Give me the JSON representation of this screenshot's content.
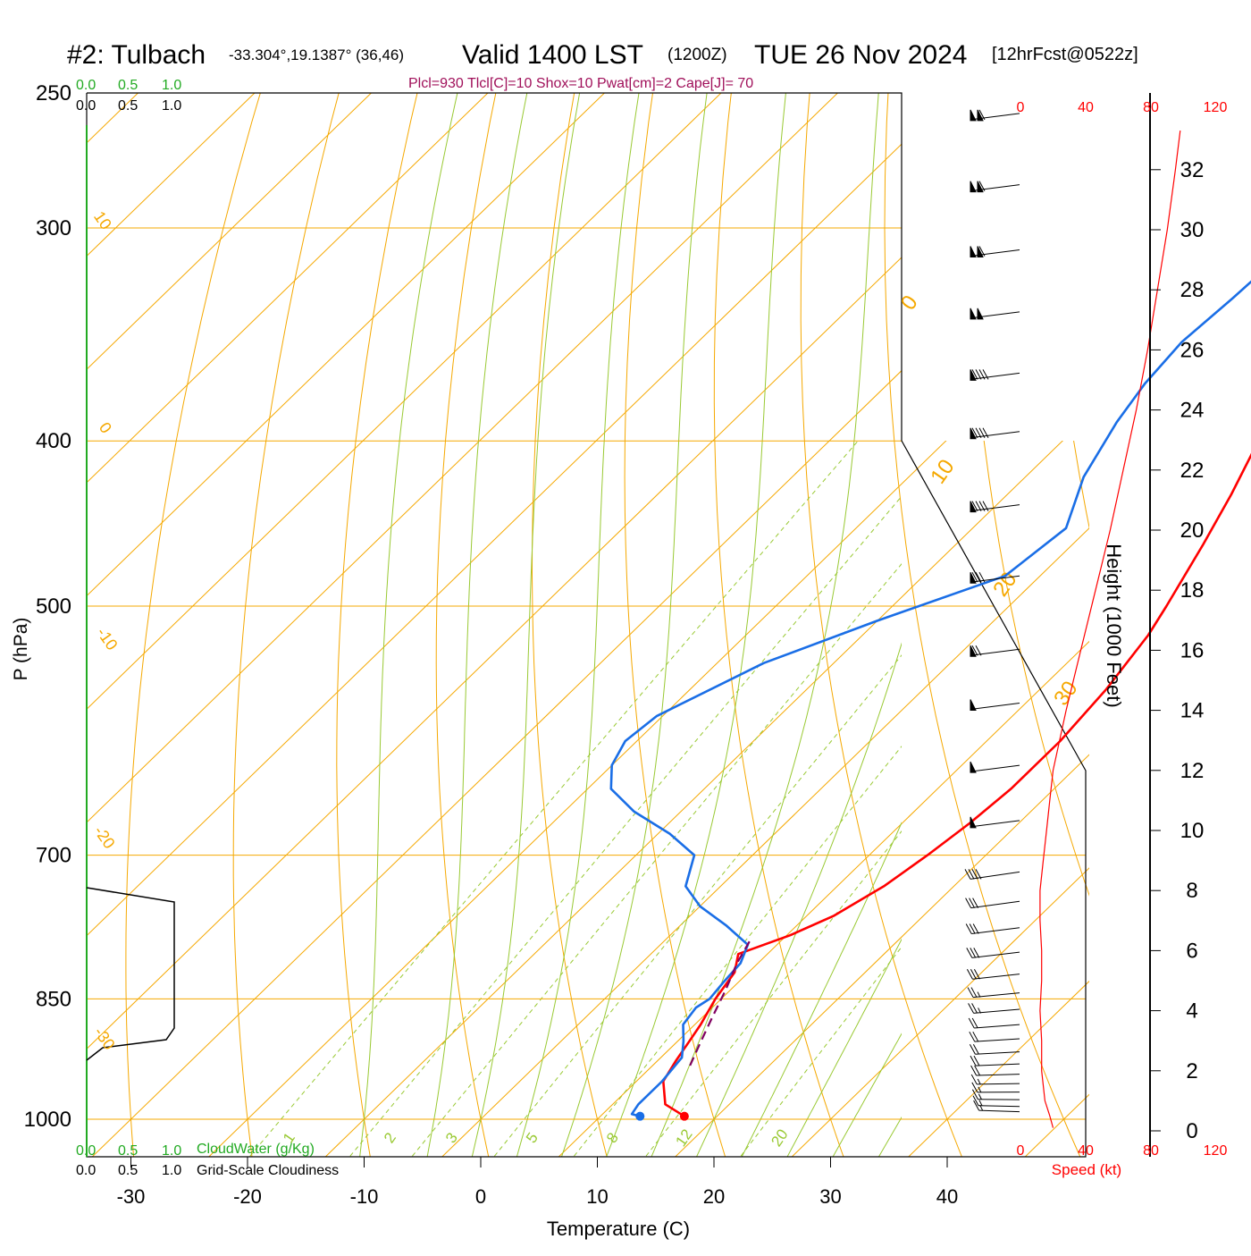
{
  "title": {
    "station": "#2: Tulbach",
    "coords": "-33.304°,19.1387° (36,46)",
    "valid": "Valid 1400 LST",
    "zulu": "(1200Z)",
    "date": "TUE 26 Nov 2024",
    "fcst": "[12hrFcst@0522z]"
  },
  "params_line": "Plcl=930 Tlcl[C]=10 Shox=10 Pwat[cm]=2 Cape[J]= 70",
  "colors": {
    "temperature": "#ff0000",
    "dewpoint": "#1a6ee6",
    "parcel": "#800060",
    "isotherm": "#f5a800",
    "dry_adiabat": "#f5a800",
    "moist_adiabat": "#99c933",
    "mixing_ratio": "#99c933",
    "cloud_water": "#22aa22",
    "wind_speed": "#ff0000",
    "frame": "#000000"
  },
  "chart_data": {
    "type": "line",
    "subtype": "skew-T log-P sounding",
    "xlabel": "Temperature (C)",
    "ylabel": "P (hPa)",
    "right_axis_label": "Height (1000 Feet)",
    "x_ticks": [
      -30,
      -20,
      -10,
      0,
      10,
      20,
      30,
      40
    ],
    "pressure_levels": [
      250,
      300,
      400,
      500,
      700,
      850,
      1000
    ],
    "height_ticks": [
      0,
      2,
      4,
      6,
      8,
      10,
      12,
      14,
      16,
      18,
      20,
      22,
      24,
      26,
      28,
      30,
      32
    ],
    "isotherm_labels": [
      "10",
      "0",
      "-10",
      "-20",
      "-30",
      "0",
      "10",
      "20",
      "30"
    ],
    "mixing_ratio_labels": [
      "1",
      "2",
      "3",
      "5",
      "8",
      "12",
      "20"
    ],
    "cloud_scales": {
      "cloud_water_ticks": [
        "0.0",
        "0.5",
        "1.0"
      ],
      "cloud_water_label": "CloudWater (g/Kg)",
      "cloudiness_ticks": [
        "0.0",
        "0.5",
        "1.0"
      ],
      "cloudiness_label": "Grid-Scale Cloudiness"
    },
    "speed_scale": {
      "ticks": [
        "0",
        "40",
        "80",
        "120"
      ],
      "label": "Speed (kt)"
    },
    "series": [
      {
        "name": "temperature",
        "points": [
          [
            996,
            17.2
          ],
          [
            980,
            14.5
          ],
          [
            950,
            12.3
          ],
          [
            925,
            11.6
          ],
          [
            900,
            11.0
          ],
          [
            880,
            10.5
          ],
          [
            850,
            9.5
          ],
          [
            820,
            8.8
          ],
          [
            800,
            7.5
          ],
          [
            780,
            10.3
          ],
          [
            760,
            12.3
          ],
          [
            730,
            14.0
          ],
          [
            700,
            15.0
          ],
          [
            670,
            15.8
          ],
          [
            640,
            16.3
          ],
          [
            600,
            16.3
          ],
          [
            560,
            15.7
          ],
          [
            520,
            14.5
          ],
          [
            500,
            13.5
          ],
          [
            460,
            11.2
          ],
          [
            430,
            9.2
          ],
          [
            400,
            6.8
          ],
          [
            370,
            4.0
          ],
          [
            340,
            1.0
          ],
          [
            310,
            -2.0
          ],
          [
            290,
            -4.0
          ],
          [
            270,
            -6.5
          ],
          [
            258,
            -8.0
          ]
        ]
      },
      {
        "name": "dewpoint",
        "points": [
          [
            996,
            13.4
          ],
          [
            993,
            12.5
          ],
          [
            980,
            12.2
          ],
          [
            950,
            12.2
          ],
          [
            920,
            11.8
          ],
          [
            900,
            10.5
          ],
          [
            880,
            9.0
          ],
          [
            860,
            8.6
          ],
          [
            850,
            9.0
          ],
          [
            830,
            8.7
          ],
          [
            810,
            8.5
          ],
          [
            790,
            7.5
          ],
          [
            770,
            4.0
          ],
          [
            750,
            0.0
          ],
          [
            730,
            -3.0
          ],
          [
            700,
            -5.0
          ],
          [
            680,
            -9.0
          ],
          [
            660,
            -14.0
          ],
          [
            640,
            -18.0
          ],
          [
            620,
            -20.0
          ],
          [
            600,
            -21.0
          ],
          [
            580,
            -20.5
          ],
          [
            540,
            -16.0
          ],
          [
            510,
            -10.0
          ],
          [
            480,
            -3.0
          ],
          [
            450,
            -2.0
          ],
          [
            420,
            -5.0
          ],
          [
            390,
            -7.0
          ],
          [
            370,
            -8.0
          ],
          [
            350,
            -8.5
          ],
          [
            330,
            -8.0
          ],
          [
            300,
            -7.5
          ],
          [
            280,
            -7.8
          ],
          [
            265,
            -8.8
          ]
        ]
      },
      {
        "name": "parcel",
        "points": [
          [
            930,
            13.2
          ],
          [
            900,
            12.0
          ],
          [
            870,
            10.8
          ],
          [
            840,
            9.6
          ],
          [
            810,
            8.2
          ],
          [
            785,
            7.3
          ]
        ]
      }
    ],
    "surface_points": [
      {
        "name": "temperature",
        "p": 996,
        "t": 17.2
      },
      {
        "name": "dewpoint",
        "p": 996,
        "t": 13.4
      }
    ],
    "wind_speed_profile": {
      "units": "kt",
      "points": [
        [
          0.1,
          20
        ],
        [
          0.5,
          18
        ],
        [
          1,
          15
        ],
        [
          2,
          13
        ],
        [
          3,
          13
        ],
        [
          4,
          12
        ],
        [
          5,
          13
        ],
        [
          6,
          13
        ],
        [
          7,
          12
        ],
        [
          8,
          12
        ],
        [
          9,
          14
        ],
        [
          10,
          16
        ],
        [
          11,
          18
        ],
        [
          12,
          20
        ],
        [
          14,
          28
        ],
        [
          16,
          37
        ],
        [
          18,
          46
        ],
        [
          20,
          55
        ],
        [
          22,
          63
        ],
        [
          24,
          71
        ],
        [
          26,
          78
        ],
        [
          28,
          84
        ],
        [
          30,
          90
        ],
        [
          32,
          95
        ],
        [
          33.3,
          98
        ]
      ]
    },
    "wind_barbs": {
      "upper_levels": [
        {
          "p": 257,
          "flags": 2,
          "full": 1,
          "half": 0
        },
        {
          "p": 283,
          "flags": 2,
          "full": 1,
          "half": 0
        },
        {
          "p": 309,
          "flags": 2,
          "full": 1,
          "half": 0
        },
        {
          "p": 336,
          "flags": 2,
          "full": 0,
          "half": 0
        },
        {
          "p": 365,
          "flags": 1,
          "full": 4,
          "half": 0
        },
        {
          "p": 395,
          "flags": 1,
          "full": 4,
          "half": 0
        },
        {
          "p": 436,
          "flags": 1,
          "full": 4,
          "half": 0
        },
        {
          "p": 480,
          "flags": 1,
          "full": 3,
          "half": 0
        },
        {
          "p": 530,
          "flags": 1,
          "full": 2,
          "half": 0
        },
        {
          "p": 570,
          "flags": 1,
          "full": 0,
          "half": 0
        },
        {
          "p": 620,
          "flags": 1,
          "full": 0,
          "half": 0
        },
        {
          "p": 668,
          "flags": 1,
          "full": 0,
          "half": 0
        }
      ],
      "low_levels": [
        {
          "p": 716,
          "flags": 0,
          "full": 4,
          "half": 0
        },
        {
          "p": 745,
          "flags": 0,
          "full": 3,
          "half": 0
        },
        {
          "p": 772,
          "flags": 0,
          "full": 3,
          "half": 0
        },
        {
          "p": 798,
          "flags": 0,
          "full": 3,
          "half": 0
        },
        {
          "p": 822,
          "flags": 0,
          "full": 3,
          "half": 0
        },
        {
          "p": 843,
          "flags": 0,
          "full": 2,
          "half": 1
        },
        {
          "p": 862,
          "flags": 0,
          "full": 2,
          "half": 1
        },
        {
          "p": 880,
          "flags": 0,
          "full": 2,
          "half": 0
        },
        {
          "p": 897,
          "flags": 0,
          "full": 2,
          "half": 0
        },
        {
          "p": 913,
          "flags": 0,
          "full": 2,
          "half": 0
        },
        {
          "p": 928,
          "flags": 0,
          "full": 2,
          "half": 0
        },
        {
          "p": 941,
          "flags": 0,
          "full": 2,
          "half": 0
        },
        {
          "p": 953,
          "flags": 0,
          "full": 1,
          "half": 1
        },
        {
          "p": 964,
          "flags": 0,
          "full": 1,
          "half": 1
        },
        {
          "p": 974,
          "flags": 0,
          "full": 1,
          "half": 1
        },
        {
          "p": 983,
          "flags": 0,
          "full": 1,
          "half": 1
        },
        {
          "p": 990,
          "flags": 0,
          "full": 1,
          "half": 1
        }
      ]
    }
  }
}
